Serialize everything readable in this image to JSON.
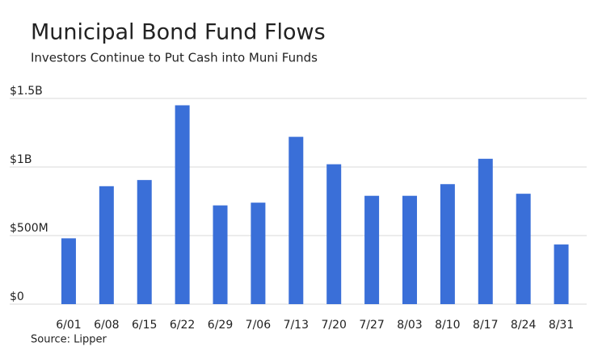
{
  "chart_data": {
    "type": "bar",
    "title": "Municipal Bond Fund Flows",
    "subtitle": "Investors Continue to Put Cash into Muni Funds",
    "source": "Source: Lipper",
    "categories": [
      "6/01",
      "6/08",
      "6/15",
      "6/22",
      "6/29",
      "7/06",
      "7/13",
      "7/20",
      "7/27",
      "8/03",
      "8/10",
      "8/17",
      "8/24",
      "8/31"
    ],
    "values": [
      480000000,
      860000000,
      905000000,
      1450000000,
      720000000,
      740000000,
      1220000000,
      1020000000,
      790000000,
      790000000,
      875000000,
      1060000000,
      805000000,
      435000000
    ],
    "color": "#3a6fd8",
    "ylim": [
      0,
      1500000000
    ],
    "yticks": [
      {
        "value": 0,
        "label": "$0"
      },
      {
        "value": 500000000,
        "label": "$500M"
      },
      {
        "value": 1000000000,
        "label": "$1B"
      },
      {
        "value": 1500000000,
        "label": "$1.5B"
      }
    ],
    "grid": true
  }
}
